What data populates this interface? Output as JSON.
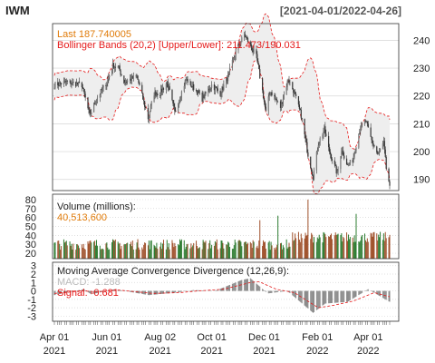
{
  "header": {
    "symbol": "IWM",
    "date_range": "[2021-04-01/2022-04-26]"
  },
  "colors": {
    "candle": "#333333",
    "band": "#e51b1b",
    "band_fill": "#eeeeee",
    "last_text": "#e07b0a",
    "volume_text": "#e07b0a",
    "macd_text": "#bbbbbb",
    "signal_text": "#e51b1b",
    "vol_up": "#2e7d32",
    "vol_down": "#a0522d",
    "grid": "#d6d6d6"
  },
  "legend": {
    "last": "Last 187.740005",
    "bbands": "Bollinger Bands (20,2) [Upper/Lower]: 211.473/190.031",
    "volume_title": "Volume (millions):",
    "volume_value": "40,513,600",
    "macd_title": "Moving Average Convergence Divergence (12,26,9):",
    "macd_value": "MACD: -1.288",
    "signal_value": "Signal: -0.681"
  },
  "chart_data": [
    {
      "type": "candlestick",
      "title": "IWM",
      "date_range": [
        "2021-04-01",
        "2022-04-26"
      ],
      "ylim": [
        186,
        246
      ],
      "yticks": [
        190,
        200,
        210,
        220,
        230,
        240
      ],
      "xtick_labels": [
        "Apr 01\n2021",
        "Jun 01\n2021",
        "Aug 02\n2021",
        "Oct 01\n2021",
        "Dec 01\n2021",
        "Feb 01\n2022",
        "Apr 01\n2022"
      ],
      "close_path": [
        {
          "date": "2021-04-01",
          "close": 224
        },
        {
          "date": "2021-04-15",
          "close": 225
        },
        {
          "date": "2021-05-03",
          "close": 224
        },
        {
          "date": "2021-05-12",
          "close": 213
        },
        {
          "date": "2021-05-20",
          "close": 219
        },
        {
          "date": "2021-06-01",
          "close": 225
        },
        {
          "date": "2021-06-08",
          "close": 231
        },
        {
          "date": "2021-06-15",
          "close": 230
        },
        {
          "date": "2021-06-21",
          "close": 225
        },
        {
          "date": "2021-07-06",
          "close": 227
        },
        {
          "date": "2021-07-19",
          "close": 212
        },
        {
          "date": "2021-07-26",
          "close": 221
        },
        {
          "date": "2021-08-02",
          "close": 221
        },
        {
          "date": "2021-08-10",
          "close": 225
        },
        {
          "date": "2021-08-19",
          "close": 214
        },
        {
          "date": "2021-09-01",
          "close": 226
        },
        {
          "date": "2021-09-13",
          "close": 222
        },
        {
          "date": "2021-09-20",
          "close": 219
        },
        {
          "date": "2021-10-01",
          "close": 224
        },
        {
          "date": "2021-10-11",
          "close": 221
        },
        {
          "date": "2021-10-20",
          "close": 227
        },
        {
          "date": "2021-10-29",
          "close": 236
        },
        {
          "date": "2021-11-08",
          "close": 242
        },
        {
          "date": "2021-11-15",
          "close": 238
        },
        {
          "date": "2021-11-22",
          "close": 234
        },
        {
          "date": "2021-11-30",
          "close": 220
        },
        {
          "date": "2021-12-03",
          "close": 214
        },
        {
          "date": "2021-12-08",
          "close": 222
        },
        {
          "date": "2021-12-20",
          "close": 216
        },
        {
          "date": "2021-12-29",
          "close": 226
        },
        {
          "date": "2022-01-04",
          "close": 222
        },
        {
          "date": "2022-01-13",
          "close": 213
        },
        {
          "date": "2022-01-21",
          "close": 199
        },
        {
          "date": "2022-01-27",
          "close": 191
        },
        {
          "date": "2022-02-02",
          "close": 203
        },
        {
          "date": "2022-02-09",
          "close": 208
        },
        {
          "date": "2022-02-14",
          "close": 201
        },
        {
          "date": "2022-02-24",
          "close": 192
        },
        {
          "date": "2022-03-01",
          "close": 201
        },
        {
          "date": "2022-03-08",
          "close": 195
        },
        {
          "date": "2022-03-14",
          "close": 197
        },
        {
          "date": "2022-03-22",
          "close": 208
        },
        {
          "date": "2022-03-29",
          "close": 211
        },
        {
          "date": "2022-04-05",
          "close": 204
        },
        {
          "date": "2022-04-12",
          "close": 199
        },
        {
          "date": "2022-04-19",
          "close": 203
        },
        {
          "date": "2022-04-22",
          "close": 194
        },
        {
          "date": "2022-04-26",
          "close": 187.74
        }
      ],
      "last": 187.740005,
      "bollinger_bands": {
        "period": 20,
        "sd": 2,
        "upper": 211.473,
        "lower": 190.031
      }
    },
    {
      "type": "bar",
      "title": "Volume (millions)",
      "ylim": [
        14,
        86
      ],
      "yticks": [
        20,
        30,
        40,
        50,
        60,
        70,
        80
      ],
      "last_value": 40.5136,
      "notable": [
        {
          "date": "2021-11-26",
          "value": 57
        },
        {
          "date": "2021-12-17",
          "value": 62
        },
        {
          "date": "2022-01-21",
          "value": 80
        },
        {
          "date": "2022-03-18",
          "value": 64
        }
      ]
    },
    {
      "type": "line",
      "title": "Moving Average Convergence Divergence (12,26,9)",
      "ylim": [
        -3.6,
        3.4
      ],
      "yticks": [
        3,
        2,
        1,
        0,
        -1,
        -2,
        -3
      ],
      "series": [
        {
          "name": "MACD",
          "last": -1.288
        },
        {
          "name": "Signal",
          "last": -0.681
        }
      ],
      "macd_path": [
        {
          "date": "2021-04-01",
          "value": -0.5
        },
        {
          "date": "2021-05-05",
          "value": 0.2
        },
        {
          "date": "2021-05-14",
          "value": -0.4
        },
        {
          "date": "2021-06-10",
          "value": 0.2
        },
        {
          "date": "2021-07-20",
          "value": -0.5
        },
        {
          "date": "2021-08-20",
          "value": -0.2
        },
        {
          "date": "2021-09-10",
          "value": 0.1
        },
        {
          "date": "2021-10-05",
          "value": 0.0
        },
        {
          "date": "2021-11-05",
          "value": 1.3
        },
        {
          "date": "2021-11-15",
          "value": 1.5
        },
        {
          "date": "2021-12-05",
          "value": -0.3
        },
        {
          "date": "2021-12-28",
          "value": 0.0
        },
        {
          "date": "2022-01-27",
          "value": -2.6
        },
        {
          "date": "2022-02-10",
          "value": -1.5
        },
        {
          "date": "2022-03-08",
          "value": -1.3
        },
        {
          "date": "2022-04-01",
          "value": 0.2
        },
        {
          "date": "2022-04-26",
          "value": -1.3
        }
      ],
      "signal_path": [
        {
          "date": "2021-04-01",
          "value": -0.3
        },
        {
          "date": "2021-05-05",
          "value": 0.0
        },
        {
          "date": "2021-05-20",
          "value": -0.1
        },
        {
          "date": "2021-06-15",
          "value": 0.1
        },
        {
          "date": "2021-07-25",
          "value": -0.3
        },
        {
          "date": "2021-08-25",
          "value": -0.2
        },
        {
          "date": "2021-09-15",
          "value": 0.0
        },
        {
          "date": "2021-10-15",
          "value": 0.2
        },
        {
          "date": "2021-11-15",
          "value": 1.0
        },
        {
          "date": "2021-11-25",
          "value": 1.1
        },
        {
          "date": "2021-12-15",
          "value": 0.2
        },
        {
          "date": "2022-01-05",
          "value": -0.2
        },
        {
          "date": "2022-02-02",
          "value": -2.0
        },
        {
          "date": "2022-02-20",
          "value": -1.7
        },
        {
          "date": "2022-03-15",
          "value": -1.2
        },
        {
          "date": "2022-04-08",
          "value": -0.2
        },
        {
          "date": "2022-04-26",
          "value": -0.7
        }
      ]
    }
  ]
}
